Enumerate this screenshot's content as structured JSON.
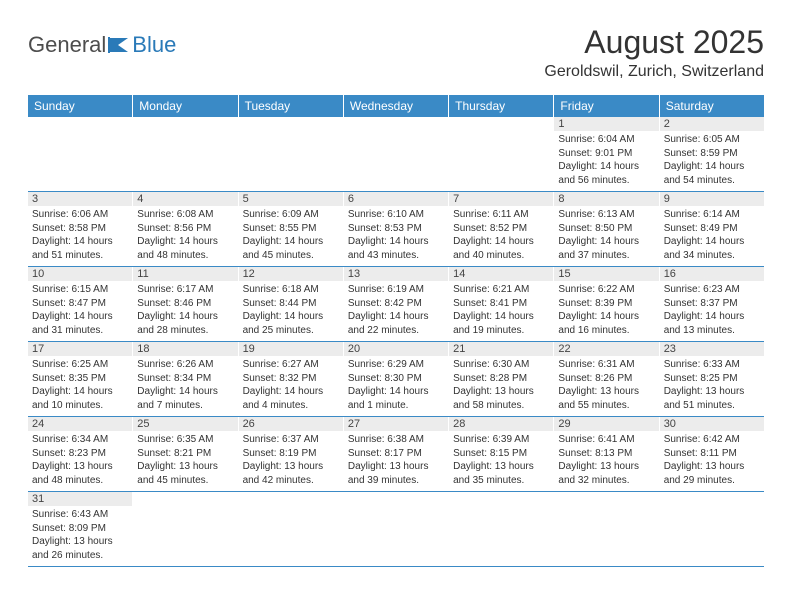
{
  "brand": {
    "general": "General",
    "blue": "Blue"
  },
  "title": "August 2025",
  "location": "Geroldswil, Zurich, Switzerland",
  "daynames": [
    "Sunday",
    "Monday",
    "Tuesday",
    "Wednesday",
    "Thursday",
    "Friday",
    "Saturday"
  ],
  "colors": {
    "header_bg": "#3a8ac6",
    "header_text": "#ffffff",
    "daynum_bg": "#ececec",
    "row_border": "#3a8ac6",
    "text": "#333333"
  },
  "weeks": [
    [
      null,
      null,
      null,
      null,
      null,
      {
        "n": "1",
        "sr": "Sunrise: 6:04 AM",
        "ss": "Sunset: 9:01 PM",
        "dl": "Daylight: 14 hours and 56 minutes."
      },
      {
        "n": "2",
        "sr": "Sunrise: 6:05 AM",
        "ss": "Sunset: 8:59 PM",
        "dl": "Daylight: 14 hours and 54 minutes."
      }
    ],
    [
      {
        "n": "3",
        "sr": "Sunrise: 6:06 AM",
        "ss": "Sunset: 8:58 PM",
        "dl": "Daylight: 14 hours and 51 minutes."
      },
      {
        "n": "4",
        "sr": "Sunrise: 6:08 AM",
        "ss": "Sunset: 8:56 PM",
        "dl": "Daylight: 14 hours and 48 minutes."
      },
      {
        "n": "5",
        "sr": "Sunrise: 6:09 AM",
        "ss": "Sunset: 8:55 PM",
        "dl": "Daylight: 14 hours and 45 minutes."
      },
      {
        "n": "6",
        "sr": "Sunrise: 6:10 AM",
        "ss": "Sunset: 8:53 PM",
        "dl": "Daylight: 14 hours and 43 minutes."
      },
      {
        "n": "7",
        "sr": "Sunrise: 6:11 AM",
        "ss": "Sunset: 8:52 PM",
        "dl": "Daylight: 14 hours and 40 minutes."
      },
      {
        "n": "8",
        "sr": "Sunrise: 6:13 AM",
        "ss": "Sunset: 8:50 PM",
        "dl": "Daylight: 14 hours and 37 minutes."
      },
      {
        "n": "9",
        "sr": "Sunrise: 6:14 AM",
        "ss": "Sunset: 8:49 PM",
        "dl": "Daylight: 14 hours and 34 minutes."
      }
    ],
    [
      {
        "n": "10",
        "sr": "Sunrise: 6:15 AM",
        "ss": "Sunset: 8:47 PM",
        "dl": "Daylight: 14 hours and 31 minutes."
      },
      {
        "n": "11",
        "sr": "Sunrise: 6:17 AM",
        "ss": "Sunset: 8:46 PM",
        "dl": "Daylight: 14 hours and 28 minutes."
      },
      {
        "n": "12",
        "sr": "Sunrise: 6:18 AM",
        "ss": "Sunset: 8:44 PM",
        "dl": "Daylight: 14 hours and 25 minutes."
      },
      {
        "n": "13",
        "sr": "Sunrise: 6:19 AM",
        "ss": "Sunset: 8:42 PM",
        "dl": "Daylight: 14 hours and 22 minutes."
      },
      {
        "n": "14",
        "sr": "Sunrise: 6:21 AM",
        "ss": "Sunset: 8:41 PM",
        "dl": "Daylight: 14 hours and 19 minutes."
      },
      {
        "n": "15",
        "sr": "Sunrise: 6:22 AM",
        "ss": "Sunset: 8:39 PM",
        "dl": "Daylight: 14 hours and 16 minutes."
      },
      {
        "n": "16",
        "sr": "Sunrise: 6:23 AM",
        "ss": "Sunset: 8:37 PM",
        "dl": "Daylight: 14 hours and 13 minutes."
      }
    ],
    [
      {
        "n": "17",
        "sr": "Sunrise: 6:25 AM",
        "ss": "Sunset: 8:35 PM",
        "dl": "Daylight: 14 hours and 10 minutes."
      },
      {
        "n": "18",
        "sr": "Sunrise: 6:26 AM",
        "ss": "Sunset: 8:34 PM",
        "dl": "Daylight: 14 hours and 7 minutes."
      },
      {
        "n": "19",
        "sr": "Sunrise: 6:27 AM",
        "ss": "Sunset: 8:32 PM",
        "dl": "Daylight: 14 hours and 4 minutes."
      },
      {
        "n": "20",
        "sr": "Sunrise: 6:29 AM",
        "ss": "Sunset: 8:30 PM",
        "dl": "Daylight: 14 hours and 1 minute."
      },
      {
        "n": "21",
        "sr": "Sunrise: 6:30 AM",
        "ss": "Sunset: 8:28 PM",
        "dl": "Daylight: 13 hours and 58 minutes."
      },
      {
        "n": "22",
        "sr": "Sunrise: 6:31 AM",
        "ss": "Sunset: 8:26 PM",
        "dl": "Daylight: 13 hours and 55 minutes."
      },
      {
        "n": "23",
        "sr": "Sunrise: 6:33 AM",
        "ss": "Sunset: 8:25 PM",
        "dl": "Daylight: 13 hours and 51 minutes."
      }
    ],
    [
      {
        "n": "24",
        "sr": "Sunrise: 6:34 AM",
        "ss": "Sunset: 8:23 PM",
        "dl": "Daylight: 13 hours and 48 minutes."
      },
      {
        "n": "25",
        "sr": "Sunrise: 6:35 AM",
        "ss": "Sunset: 8:21 PM",
        "dl": "Daylight: 13 hours and 45 minutes."
      },
      {
        "n": "26",
        "sr": "Sunrise: 6:37 AM",
        "ss": "Sunset: 8:19 PM",
        "dl": "Daylight: 13 hours and 42 minutes."
      },
      {
        "n": "27",
        "sr": "Sunrise: 6:38 AM",
        "ss": "Sunset: 8:17 PM",
        "dl": "Daylight: 13 hours and 39 minutes."
      },
      {
        "n": "28",
        "sr": "Sunrise: 6:39 AM",
        "ss": "Sunset: 8:15 PM",
        "dl": "Daylight: 13 hours and 35 minutes."
      },
      {
        "n": "29",
        "sr": "Sunrise: 6:41 AM",
        "ss": "Sunset: 8:13 PM",
        "dl": "Daylight: 13 hours and 32 minutes."
      },
      {
        "n": "30",
        "sr": "Sunrise: 6:42 AM",
        "ss": "Sunset: 8:11 PM",
        "dl": "Daylight: 13 hours and 29 minutes."
      }
    ],
    [
      {
        "n": "31",
        "sr": "Sunrise: 6:43 AM",
        "ss": "Sunset: 8:09 PM",
        "dl": "Daylight: 13 hours and 26 minutes."
      },
      null,
      null,
      null,
      null,
      null,
      null
    ]
  ]
}
